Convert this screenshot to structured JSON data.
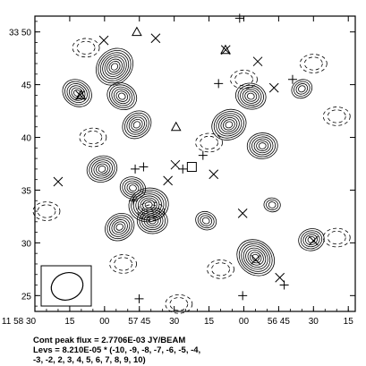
{
  "chart_data": {
    "type": "contour",
    "title": "",
    "xlabel": "",
    "ylabel": "",
    "x_tick_labels": [
      "11 58 30",
      "15",
      "00",
      "57 45",
      "30",
      "15",
      "00",
      "56 45",
      "30",
      "15"
    ],
    "y_tick_labels": [
      "33 50",
      "45",
      "40",
      "35",
      "30",
      "25"
    ],
    "xlim_seconds_of_RA": [
      30,
      15
    ],
    "ylim_arcmin": [
      23.5,
      51.5
    ],
    "contour_levels_multiplier": [
      -10,
      -9,
      -8,
      -7,
      -6,
      -5,
      -4,
      -3,
      -2,
      2,
      3,
      4,
      5,
      6,
      7,
      8,
      9,
      10
    ],
    "sources": [
      {
        "x": "57 55.7",
        "y": 46.7,
        "levels": 8
      },
      {
        "x": "57 41.0",
        "y": 33.6,
        "levels": 8
      },
      {
        "x": "57 52.5",
        "y": 43.9,
        "levels": 6
      },
      {
        "x": "57 06.4",
        "y": 41.2,
        "levels": 7
      },
      {
        "x": "56 57.0",
        "y": 43.9,
        "levels": 6
      },
      {
        "x": "57 46.1",
        "y": 41.2,
        "levels": 6
      },
      {
        "x": "56 52.0",
        "y": 39.2,
        "levels": 6
      },
      {
        "x": "58 11.8",
        "y": 44.2,
        "levels": 6
      },
      {
        "x": "58 01.1",
        "y": 37.0,
        "levels": 6
      },
      {
        "x": "57 47.8",
        "y": 35.2,
        "levels": 5
      },
      {
        "x": "57 53.5",
        "y": 31.5,
        "levels": 6
      },
      {
        "x": "57 39.4",
        "y": 32.1,
        "levels": 6
      },
      {
        "x": "56 54.9",
        "y": 28.6,
        "levels": 8
      },
      {
        "x": "56 30.9",
        "y": 30.3,
        "levels": 5
      },
      {
        "x": "57 16.3",
        "y": 32.1,
        "levels": 4
      },
      {
        "x": "56 35.0",
        "y": 44.6,
        "levels": 4
      },
      {
        "x": "56 47.8",
        "y": 33.6,
        "levels": 3
      }
    ],
    "markers": {
      "triangles": [
        [
          "57 46.1",
          50.0
        ],
        [
          "58 10.2",
          44.0
        ],
        [
          "57 29.2",
          41.0
        ],
        [
          "57 07.9",
          48.3
        ]
      ],
      "plus": [
        [
          "57 01.8",
          51.3
        ],
        [
          "57 10.9",
          45.1
        ],
        [
          "57 17.6",
          38.3
        ],
        [
          "57 43.2",
          37.2
        ],
        [
          "57 47.6",
          34.0
        ],
        [
          "57 45.1",
          24.7
        ],
        [
          "57 26.3",
          37.0
        ],
        [
          "57 00.5",
          25.0
        ],
        [
          "56 39.0",
          45.5
        ],
        [
          "56 42.6",
          26.0
        ],
        [
          "57 46.8",
          37.0
        ]
      ],
      "cross": [
        [
          "57 38.0",
          49.4
        ],
        [
          "57 32.7",
          35.9
        ],
        [
          "57 13.0",
          36.5
        ],
        [
          "57 00.5",
          32.8
        ],
        [
          "57 29.5",
          37.4
        ],
        [
          "58 20.0",
          35.8
        ],
        [
          "56 44.5",
          26.7
        ],
        [
          "58 00.3",
          49.2
        ],
        [
          "56 54.0",
          47.2
        ],
        [
          "56 47.0",
          44.7
        ],
        [
          "57 07.8",
          48.3
        ],
        [
          "58 10.5",
          44.0
        ],
        [
          "56 30.0",
          30.2
        ],
        [
          "56 54.9",
          28.4
        ]
      ],
      "square": [
        [
          "57 22.4",
          37.2
        ]
      ]
    },
    "beam_box": {
      "label": "",
      "ellipse": true
    }
  },
  "footer": {
    "line1": "Cont peak flux =  2.7706E-03 JY/BEAM",
    "line2": "Levs = 8.210E-05 * (-10, -9, -8, -7, -6, -5, -4,",
    "line3": "-3, -2, 2, 3, 4, 5, 6, 7, 8, 9, 10)"
  }
}
